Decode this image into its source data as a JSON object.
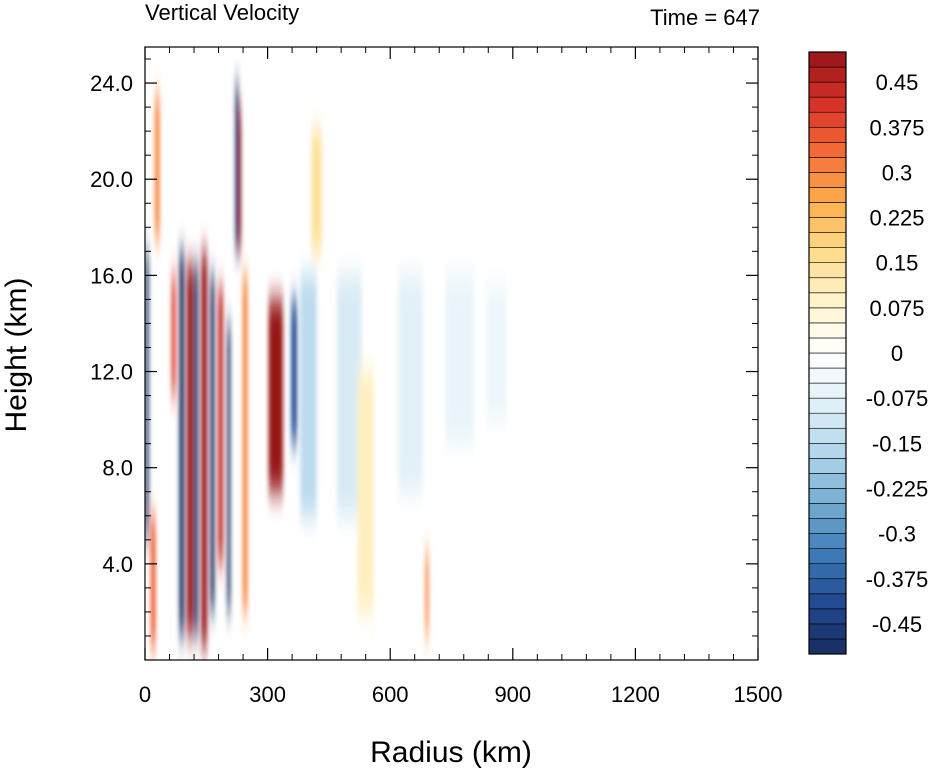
{
  "chart_data": {
    "type": "heatmap",
    "title": "Vertical Velocity",
    "subtitle": "Time = 647",
    "xlabel": "Radius (km)",
    "ylabel": "Height (km)",
    "xlim": [
      0,
      1500
    ],
    "ylim": [
      0,
      25.5
    ],
    "x_ticks": [
      0,
      300,
      600,
      900,
      1200,
      1500
    ],
    "x_tick_labels": [
      "0",
      "300",
      "600",
      "900",
      "1200",
      "1500"
    ],
    "y_ticks": [
      4,
      8,
      12,
      16,
      20,
      24
    ],
    "y_tick_labels": [
      "4.0",
      "8.0",
      "12.0",
      "16.0",
      "20.0",
      "24.0"
    ],
    "colorbar": {
      "levels": [
        -0.5,
        -0.475,
        -0.45,
        -0.425,
        -0.4,
        -0.375,
        -0.35,
        -0.325,
        -0.3,
        -0.275,
        -0.25,
        -0.225,
        -0.2,
        -0.175,
        -0.15,
        -0.125,
        -0.1,
        -0.075,
        -0.05,
        -0.025,
        0,
        0.025,
        0.05,
        0.075,
        0.1,
        0.125,
        0.15,
        0.175,
        0.2,
        0.225,
        0.25,
        0.275,
        0.3,
        0.325,
        0.35,
        0.375,
        0.4,
        0.425,
        0.45,
        0.475,
        0.5
      ],
      "labels": [
        {
          "value": 0.45,
          "text": "0.45"
        },
        {
          "value": 0.375,
          "text": "0.375"
        },
        {
          "value": 0.3,
          "text": "0.3"
        },
        {
          "value": 0.225,
          "text": "0.225"
        },
        {
          "value": 0.15,
          "text": "0.15"
        },
        {
          "value": 0.075,
          "text": "0.075"
        },
        {
          "value": 0,
          "text": "0"
        },
        {
          "value": -0.075,
          "text": "-0.075"
        },
        {
          "value": -0.15,
          "text": "-0.15"
        },
        {
          "value": -0.225,
          "text": "-0.225"
        },
        {
          "value": -0.3,
          "text": "-0.3"
        },
        {
          "value": -0.375,
          "text": "-0.375"
        },
        {
          "value": -0.45,
          "text": "-0.45"
        }
      ],
      "colormap": "blue-white-red (diverging)"
    },
    "features": [
      {
        "type": "column",
        "x_center": 5,
        "width": 8,
        "y_range": [
          5,
          17
        ],
        "value": -0.5
      },
      {
        "type": "column",
        "x_center": 20,
        "width": 12,
        "y_range": [
          0.5,
          6
        ],
        "value": 0.35
      },
      {
        "type": "column",
        "x_center": 30,
        "width": 12,
        "y_range": [
          17.5,
          23.5
        ],
        "value": 0.3
      },
      {
        "type": "column",
        "x_center": 70,
        "width": 10,
        "y_range": [
          11,
          16
        ],
        "value": 0.4
      },
      {
        "type": "column",
        "x_center": 90,
        "width": 12,
        "y_range": [
          1,
          17
        ],
        "value": -0.5
      },
      {
        "type": "column",
        "x_center": 110,
        "width": 15,
        "y_range": [
          1,
          16.5
        ],
        "value": 0.5
      },
      {
        "type": "column",
        "x_center": 125,
        "width": 10,
        "y_range": [
          1,
          16.5
        ],
        "value": -0.5
      },
      {
        "type": "column",
        "x_center": 145,
        "width": 14,
        "y_range": [
          0.5,
          17
        ],
        "value": 0.5
      },
      {
        "type": "column",
        "x_center": 165,
        "width": 10,
        "y_range": [
          2,
          16
        ],
        "value": -0.5
      },
      {
        "type": "column",
        "x_center": 185,
        "width": 12,
        "y_range": [
          4,
          15.5
        ],
        "value": 0.45
      },
      {
        "type": "column",
        "x_center": 205,
        "width": 8,
        "y_range": [
          2,
          14
        ],
        "value": -0.5
      },
      {
        "type": "column",
        "x_center": 225,
        "width": 8,
        "y_range": [
          17,
          24
        ],
        "value": -0.5
      },
      {
        "type": "column",
        "x_center": 232,
        "width": 6,
        "y_range": [
          17,
          23
        ],
        "value": 0.5
      },
      {
        "type": "column",
        "x_center": 245,
        "width": 12,
        "y_range": [
          2,
          16
        ],
        "value": 0.3
      },
      {
        "type": "column",
        "x_center": 320,
        "width": 35,
        "y_range": [
          7,
          15
        ],
        "value": 0.5
      },
      {
        "type": "column",
        "x_center": 365,
        "width": 15,
        "y_range": [
          9,
          15
        ],
        "value": -0.4
      },
      {
        "type": "column",
        "x_center": 400,
        "width": 40,
        "y_range": [
          6,
          16
        ],
        "value": -0.15
      },
      {
        "type": "column",
        "x_center": 420,
        "width": 25,
        "y_range": [
          17,
          22
        ],
        "value": 0.15
      },
      {
        "type": "column",
        "x_center": 500,
        "width": 60,
        "y_range": [
          6,
          16
        ],
        "value": -0.1
      },
      {
        "type": "column",
        "x_center": 540,
        "width": 40,
        "y_range": [
          2,
          12
        ],
        "value": 0.1
      },
      {
        "type": "column",
        "x_center": 650,
        "width": 60,
        "y_range": [
          7,
          16
        ],
        "value": -0.08
      },
      {
        "type": "column",
        "x_center": 690,
        "width": 8,
        "y_range": [
          1,
          4.5
        ],
        "value": 0.3
      },
      {
        "type": "column",
        "x_center": 770,
        "width": 70,
        "y_range": [
          9,
          16
        ],
        "value": -0.06
      },
      {
        "type": "column",
        "x_center": 860,
        "width": 50,
        "y_range": [
          10,
          15.5
        ],
        "value": -0.05
      }
    ]
  }
}
